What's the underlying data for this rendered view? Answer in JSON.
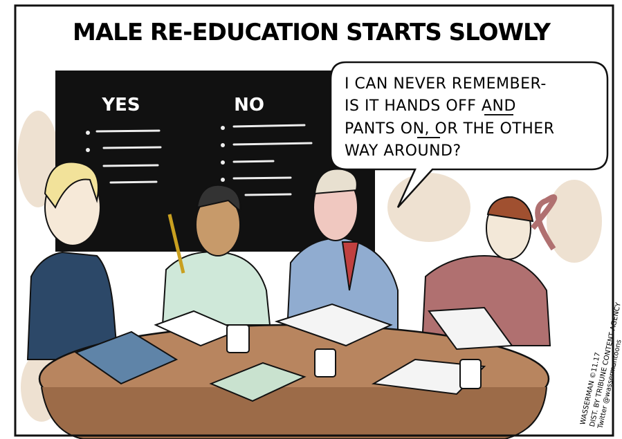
{
  "title": "MALE RE-EDUCATION STARTS SLOWLY",
  "chalkboard": {
    "columns": [
      "YES",
      "NO"
    ]
  },
  "speech_bubble": {
    "lines": [
      "I CAN NEVER REMEMBER-",
      "IS IT HANDS OFF AND",
      "PANTS ON, OR THE OTHER",
      "WAY AROUND?"
    ]
  },
  "signature": {
    "lines": [
      "WASSERMAN ©11.17",
      "DIST. BY TRIBUNE CONTENT AGENCY",
      "Twitter @wassermantoons"
    ]
  }
}
